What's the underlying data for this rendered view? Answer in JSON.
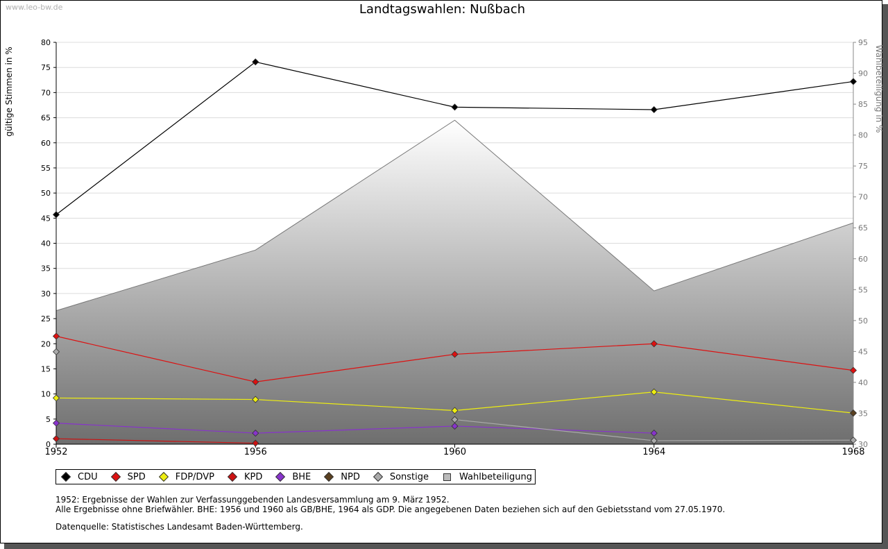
{
  "watermark": "www.leo-bw.de",
  "notes": [
    "1952: Ergebnisse der Wahlen zur Verfassunggebenden Landesversammlung am 9. März 1952.",
    "Alle Ergebnisse ohne Briefwähler. BHE: 1956 und 1960 als GB/BHE, 1964 als GDP. Die angegebenen Daten beziehen sich auf den Gebietsstand vom 27.05.1970."
  ],
  "source": "Datenquelle: Statistisches Landesamt Baden-Württemberg.",
  "chart_data": {
    "type": "line",
    "title": "Landtagswahlen: Nußbach",
    "ylabel": "gültige Stimmen in %",
    "y2label": "Wahlbeteiligung in %",
    "categories": [
      "1952",
      "1956",
      "1960",
      "1964",
      "1968"
    ],
    "ylim": [
      0,
      80
    ],
    "yticks": [
      0,
      5,
      10,
      15,
      20,
      25,
      30,
      35,
      40,
      45,
      50,
      55,
      60,
      65,
      70,
      75,
      80
    ],
    "y2lim": [
      30,
      95
    ],
    "y2ticks": [
      30,
      35,
      40,
      45,
      50,
      55,
      60,
      65,
      70,
      75,
      80,
      85,
      90,
      95
    ],
    "grid": true,
    "legend_position": "bottom",
    "series": [
      {
        "name": "CDU",
        "color": "#000000",
        "values": [
          45.7,
          76.1,
          67.1,
          66.6,
          72.2
        ]
      },
      {
        "name": "SPD",
        "color": "#dd1111",
        "values": [
          21.5,
          12.4,
          17.9,
          20.0,
          14.7
        ]
      },
      {
        "name": "FDP/DVP",
        "color": "#eeee11",
        "values": [
          9.2,
          8.9,
          6.7,
          10.4,
          6.2
        ]
      },
      {
        "name": "KPD",
        "color": "#cc1111",
        "values": [
          1.1,
          0.2,
          null,
          null,
          null
        ]
      },
      {
        "name": "BHE",
        "color": "#8833cc",
        "values": [
          4.2,
          2.2,
          3.6,
          2.2,
          null
        ]
      },
      {
        "name": "NPD",
        "color": "#5a4020",
        "values": [
          null,
          null,
          null,
          null,
          6.2
        ]
      },
      {
        "name": "Sonstige",
        "color": "#aaaaaa",
        "values": [
          18.4,
          null,
          4.9,
          0.7,
          0.8
        ]
      }
    ],
    "area_series": {
      "name": "Wahlbeteiligung",
      "axis": "right",
      "values": [
        51.6,
        61.4,
        82.4,
        54.8,
        65.8
      ]
    }
  }
}
